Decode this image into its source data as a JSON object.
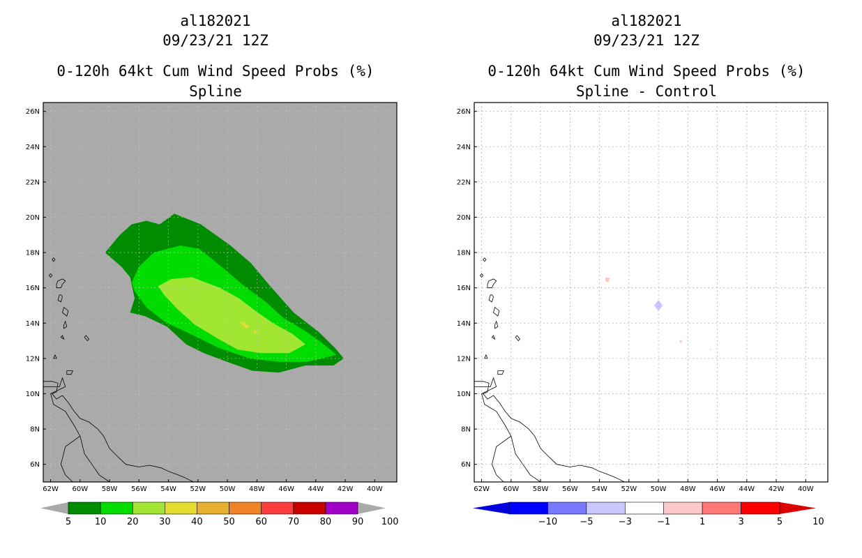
{
  "chart_data": [
    {
      "type": "filled-contour map",
      "storm_id": "al182021",
      "datetime": "09/23/21 12Z",
      "title": "0-120h 64kt Cum Wind Speed Probs (%)",
      "subtitle": "Spline",
      "lon_ticks": [
        "62W",
        "60W",
        "58W",
        "56W",
        "54W",
        "52W",
        "50W",
        "48W",
        "46W",
        "44W",
        "42W",
        "40W"
      ],
      "lat_ticks": [
        "6N",
        "8N",
        "10N",
        "12N",
        "14N",
        "16N",
        "18N",
        "20N",
        "22N",
        "24N",
        "26N"
      ],
      "lon_range": [
        -62.5,
        -38.5
      ],
      "lat_range": [
        5,
        26.5
      ],
      "grid": true,
      "colorbar": {
        "labels": [
          "5",
          "10",
          "20",
          "30",
          "40",
          "50",
          "60",
          "70",
          "80",
          "90",
          "100"
        ],
        "colors": [
          "#008c00",
          "#00dc00",
          "#a0e632",
          "#e6dc32",
          "#e6af2d",
          "#f08228",
          "#fa3c3c",
          "#c80000",
          "#a000c8"
        ]
      },
      "contours": [
        {
          "level": "5-10",
          "color": "#008c00",
          "points": [
            [
              -55.5,
              19.8
            ],
            [
              -54.6,
              19.6
            ],
            [
              -53.6,
              20.2
            ],
            [
              -51.8,
              19.6
            ],
            [
              -49.8,
              18.4
            ],
            [
              -48.4,
              17.4
            ],
            [
              -47.2,
              16.2
            ],
            [
              -45.5,
              14.6
            ],
            [
              -43.8,
              13.5
            ],
            [
              -42.7,
              12.6
            ],
            [
              -42.1,
              12.0
            ],
            [
              -42.8,
              11.6
            ],
            [
              -44.7,
              11.6
            ],
            [
              -46.5,
              11.2
            ],
            [
              -48.3,
              11.3
            ],
            [
              -50.0,
              11.8
            ],
            [
              -51.6,
              12.3
            ],
            [
              -52.8,
              12.8
            ],
            [
              -54.1,
              13.8
            ],
            [
              -55.6,
              14.4
            ],
            [
              -56.6,
              14.6
            ],
            [
              -56.3,
              15.4
            ],
            [
              -56.6,
              16.6
            ],
            [
              -57.2,
              17.2
            ],
            [
              -58.3,
              18.0
            ],
            [
              -57.3,
              19.0
            ],
            [
              -56.5,
              19.6
            ]
          ]
        },
        {
          "level": "10-20",
          "color": "#00dc00",
          "points": [
            [
              -55.0,
              18.0
            ],
            [
              -53.2,
              18.4
            ],
            [
              -51.9,
              18.2
            ],
            [
              -50.4,
              17.2
            ],
            [
              -49.0,
              16.2
            ],
            [
              -47.4,
              15.2
            ],
            [
              -46.2,
              14.3
            ],
            [
              -44.8,
              13.6
            ],
            [
              -43.6,
              12.9
            ],
            [
              -42.6,
              12.2
            ],
            [
              -44.6,
              11.8
            ],
            [
              -46.5,
              11.8
            ],
            [
              -48.5,
              12.0
            ],
            [
              -50.6,
              12.6
            ],
            [
              -52.3,
              13.3
            ],
            [
              -54.3,
              14.1
            ],
            [
              -55.5,
              14.9
            ],
            [
              -56.3,
              15.8
            ],
            [
              -56.5,
              16.3
            ],
            [
              -56.0,
              17.2
            ]
          ]
        },
        {
          "level": "20-30",
          "color": "#a0e632",
          "points": [
            [
              -53.8,
              16.5
            ],
            [
              -52.4,
              16.6
            ],
            [
              -50.5,
              16.0
            ],
            [
              -49.2,
              15.4
            ],
            [
              -48.1,
              14.7
            ],
            [
              -46.9,
              14.0
            ],
            [
              -45.6,
              13.4
            ],
            [
              -44.7,
              12.8
            ],
            [
              -45.8,
              12.3
            ],
            [
              -47.7,
              12.3
            ],
            [
              -49.3,
              12.5
            ],
            [
              -50.6,
              13.1
            ],
            [
              -52.2,
              13.9
            ],
            [
              -53.4,
              14.8
            ],
            [
              -54.3,
              15.6
            ],
            [
              -54.7,
              16.1
            ]
          ]
        },
        {
          "level": "30-40",
          "color": "#e6dc32",
          "points": [
            [
              -49.2,
              14.1
            ],
            [
              -48.8,
              14.0
            ],
            [
              -48.5,
              13.8
            ],
            [
              -48.7,
              13.7
            ],
            [
              -49.0,
              13.9
            ]
          ]
        },
        {
          "level": "30-40",
          "color": "#e6dc32",
          "points": [
            [
              -48.2,
              13.6
            ],
            [
              -47.9,
              13.5
            ],
            [
              -48.2,
              13.4
            ]
          ]
        }
      ]
    },
    {
      "type": "filled-contour map",
      "storm_id": "al182021",
      "datetime": "09/23/21 12Z",
      "title": "0-120h 64kt Cum Wind Speed Probs (%)",
      "subtitle": "Spline - Control",
      "lon_ticks": [
        "62W",
        "60W",
        "58W",
        "56W",
        "54W",
        "52W",
        "50W",
        "48W",
        "46W",
        "44W",
        "42W",
        "40W"
      ],
      "lat_ticks": [
        "6N",
        "8N",
        "10N",
        "12N",
        "14N",
        "16N",
        "18N",
        "20N",
        "22N",
        "24N",
        "26N"
      ],
      "lon_range": [
        -62.5,
        -38.5
      ],
      "lat_range": [
        5,
        26.5
      ],
      "grid": true,
      "colorbar": {
        "labels": [
          "-10",
          "-5",
          "-3",
          "-1",
          "1",
          "3",
          "5",
          "10"
        ],
        "colors": [
          "#0000dc",
          "#0000ff",
          "#7878ff",
          "#c8c8ff",
          "#ffffff",
          "#ffc8c8",
          "#ff7878",
          "#ff0000",
          "#dc0000"
        ]
      },
      "contours": [
        {
          "level": "-3 to -1",
          "color": "#c8c8ff",
          "points": [
            [
              -50.0,
              15.3
            ],
            [
              -49.7,
              15.0
            ],
            [
              -50.0,
              14.7
            ],
            [
              -50.3,
              15.0
            ]
          ]
        },
        {
          "level": "1 to 3",
          "color": "#ffc8c8",
          "points": [
            [
              -53.6,
              16.6
            ],
            [
              -53.3,
              16.55
            ],
            [
              -53.4,
              16.3
            ],
            [
              -53.6,
              16.4
            ]
          ]
        },
        {
          "level": "1 to 3",
          "color": "#ffc8c8",
          "points": [
            [
              -48.5,
              13.05
            ],
            [
              -48.35,
              12.95
            ],
            [
              -48.5,
              12.88
            ],
            [
              -48.6,
              12.96
            ]
          ]
        },
        {
          "level": "1 to 3",
          "color": "#ffc8c8",
          "points": [
            [
              -46.5,
              12.55
            ],
            [
              -46.4,
              12.5
            ],
            [
              -46.5,
              12.45
            ]
          ]
        }
      ]
    }
  ],
  "coastlines": {
    "islands": [
      [
        [
          -61.8,
          17.7
        ],
        [
          -61.7,
          17.6
        ],
        [
          -61.8,
          17.5
        ],
        [
          -61.9,
          17.6
        ]
      ],
      [
        [
          -62.0,
          16.8
        ],
        [
          -61.9,
          16.7
        ],
        [
          -62.0,
          16.6
        ],
        [
          -62.1,
          16.7
        ]
      ],
      [
        [
          -61.5,
          16.4
        ],
        [
          -61.2,
          16.5
        ],
        [
          -61.0,
          16.4
        ],
        [
          -61.2,
          16.2
        ],
        [
          -61.3,
          16.0
        ],
        [
          -61.6,
          16.0
        ],
        [
          -61.6,
          16.2
        ]
      ],
      [
        [
          -61.3,
          15.6
        ],
        [
          -61.2,
          15.5
        ],
        [
          -61.3,
          15.2
        ],
        [
          -61.5,
          15.3
        ],
        [
          -61.4,
          15.6
        ]
      ],
      [
        [
          -61.1,
          14.9
        ],
        [
          -60.8,
          14.7
        ],
        [
          -60.9,
          14.4
        ],
        [
          -61.2,
          14.6
        ]
      ],
      [
        [
          -61.0,
          14.1
        ],
        [
          -60.9,
          13.8
        ],
        [
          -61.1,
          13.7
        ],
        [
          -61.1,
          13.9
        ]
      ],
      [
        [
          -59.6,
          13.3
        ],
        [
          -59.4,
          13.1
        ],
        [
          -59.5,
          13.0
        ],
        [
          -59.7,
          13.2
        ]
      ],
      [
        [
          -61.2,
          13.3
        ],
        [
          -61.1,
          13.1
        ],
        [
          -61.3,
          13.2
        ]
      ],
      [
        [
          -61.7,
          12.2
        ],
        [
          -61.6,
          12.0
        ],
        [
          -61.8,
          12.0
        ]
      ],
      [
        [
          -60.9,
          11.3
        ],
        [
          -60.5,
          11.3
        ],
        [
          -60.6,
          11.1
        ],
        [
          -60.9,
          11.1
        ]
      ]
    ],
    "mainland": [
      [
        -62.5,
        10.7
      ],
      [
        -61.9,
        10.7
      ],
      [
        -61.5,
        10.6
      ],
      [
        -61.6,
        10.1
      ],
      [
        -61.9,
        10.0
      ],
      [
        -61.6,
        9.7
      ],
      [
        -61.2,
        9.9
      ],
      [
        -60.8,
        9.5
      ],
      [
        -60.4,
        9.0
      ],
      [
        -60.0,
        8.6
      ],
      [
        -59.4,
        8.4
      ],
      [
        -58.8,
        8.0
      ],
      [
        -58.4,
        7.6
      ],
      [
        -58.0,
        6.9
      ],
      [
        -57.4,
        6.4
      ],
      [
        -56.9,
        6.0
      ],
      [
        -56.0,
        5.85
      ],
      [
        -55.3,
        5.95
      ],
      [
        -54.5,
        5.8
      ],
      [
        -54.0,
        5.6
      ],
      [
        -53.5,
        5.45
      ],
      [
        -52.9,
        5.25
      ],
      [
        -52.3,
        5.0
      ]
    ],
    "inland": [
      [
        -62.5,
        10.4
      ],
      [
        -61.4,
        10.4
      ],
      [
        -61.2,
        10.9
      ],
      [
        -61.0,
        10.4
      ],
      [
        -62.0,
        10.0
      ],
      [
        -61.8,
        9.4
      ],
      [
        -61.0,
        9.0
      ],
      [
        -60.4,
        8.2
      ],
      [
        -60.0,
        7.6
      ],
      [
        -61.0,
        7.0
      ],
      [
        -61.3,
        6.0
      ],
      [
        -61.0,
        5.4
      ],
      [
        -60.5,
        5.0
      ]
    ],
    "inland2": [
      [
        -60.0,
        7.6
      ],
      [
        -59.7,
        6.6
      ],
      [
        -59.2,
        6.0
      ],
      [
        -58.7,
        5.4
      ],
      [
        -58.0,
        5.0
      ]
    ]
  }
}
